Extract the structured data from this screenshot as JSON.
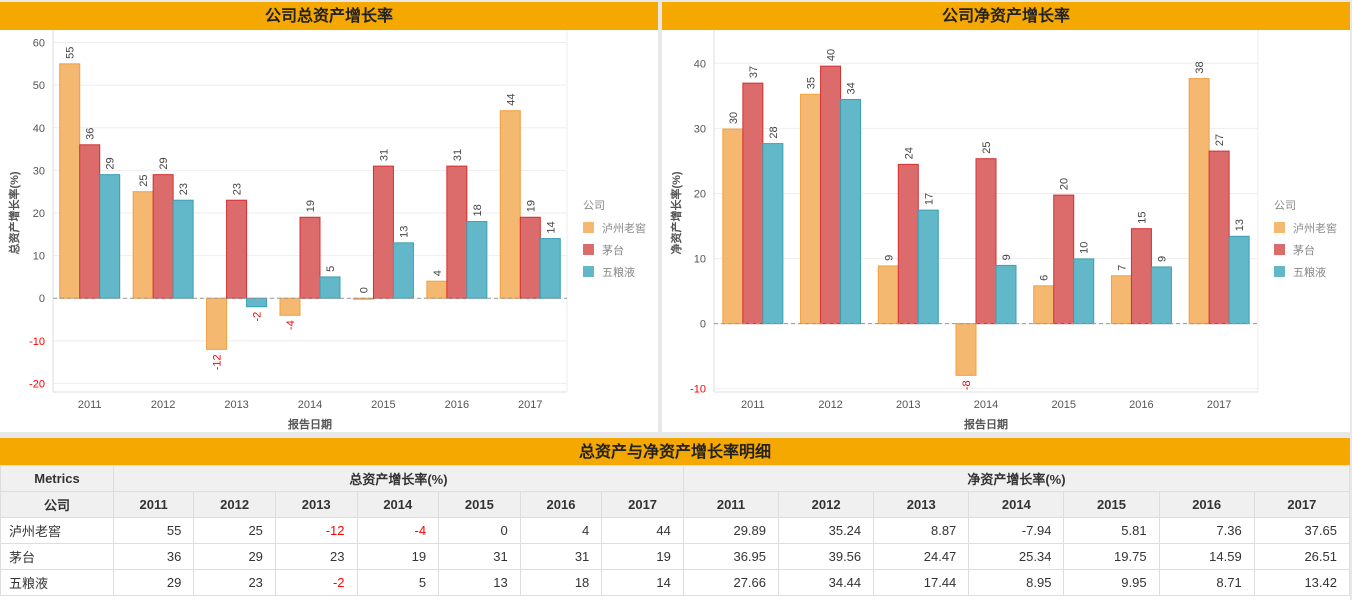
{
  "charts_titles": [
    "公司总资产增长率",
    "公司净资产增长率"
  ],
  "legend": {
    "title": "公司",
    "items": [
      "泸州老窖",
      "茅台",
      "五粮液"
    ]
  },
  "colors": {
    "fill": [
      "#f4b870",
      "#dc6b6b",
      "#62b8c9"
    ],
    "stroke": [
      "#f0a040",
      "#d43030",
      "#3a9fb5"
    ],
    "header": "#f5a800",
    "negative": "#ff0000"
  },
  "chart_data": [
    {
      "type": "bar",
      "title": "公司总资产增长率",
      "xlabel": "报告日期",
      "ylabel": "总资产增长率(%)",
      "categories": [
        "2011",
        "2012",
        "2013",
        "2014",
        "2015",
        "2016",
        "2017"
      ],
      "ylim": [
        -22,
        62
      ],
      "yticks": [
        -20,
        -10,
        0,
        10,
        20,
        30,
        40,
        50,
        60
      ],
      "series": [
        {
          "name": "泸州老窖",
          "values": [
            55,
            25,
            -12,
            -4,
            0,
            4,
            44
          ]
        },
        {
          "name": "茅台",
          "values": [
            36,
            29,
            23,
            19,
            31,
            31,
            19
          ]
        },
        {
          "name": "五粮液",
          "values": [
            29,
            23,
            -2,
            5,
            13,
            18,
            14
          ]
        }
      ]
    },
    {
      "type": "bar",
      "title": "公司净资产增长率",
      "xlabel": "报告日期",
      "ylabel": "净资产增长率(%)",
      "categories": [
        "2011",
        "2012",
        "2013",
        "2014",
        "2015",
        "2016",
        "2017"
      ],
      "ylim": [
        -10.5,
        44.5
      ],
      "yticks": [
        -10,
        0,
        10,
        20,
        30,
        40
      ],
      "series": [
        {
          "name": "泸州老窖",
          "values": [
            29.89,
            35.24,
            8.87,
            -7.94,
            5.81,
            7.36,
            37.65
          ]
        },
        {
          "name": "茅台",
          "values": [
            36.95,
            39.56,
            24.47,
            25.34,
            19.75,
            14.59,
            26.51
          ]
        },
        {
          "name": "五粮液",
          "values": [
            27.66,
            34.44,
            17.44,
            8.95,
            9.95,
            8.71,
            13.42
          ]
        }
      ]
    }
  ],
  "table": {
    "title": "总资产与净资产增长率明细",
    "metrics_label": "Metrics",
    "company_label": "公司",
    "group1": "总资产增长率(%)",
    "group2": "净资产增长率(%)",
    "years": [
      "2011",
      "2012",
      "2013",
      "2014",
      "2015",
      "2016",
      "2017"
    ],
    "rows": [
      {
        "name": "泸州老窖",
        "total": [
          "55",
          "25",
          "-12",
          "-4",
          "0",
          "4",
          "44"
        ],
        "net": [
          "29.89",
          "35.24",
          "8.87",
          "-7.94",
          "5.81",
          "7.36",
          "37.65"
        ]
      },
      {
        "name": "茅台",
        "total": [
          "36",
          "29",
          "23",
          "19",
          "31",
          "31",
          "19"
        ],
        "net": [
          "36.95",
          "39.56",
          "24.47",
          "25.34",
          "19.75",
          "14.59",
          "26.51"
        ]
      },
      {
        "name": "五粮液",
        "total": [
          "29",
          "23",
          "-2",
          "5",
          "13",
          "18",
          "14"
        ],
        "net": [
          "27.66",
          "34.44",
          "17.44",
          "8.95",
          "9.95",
          "8.71",
          "13.42"
        ]
      }
    ]
  }
}
